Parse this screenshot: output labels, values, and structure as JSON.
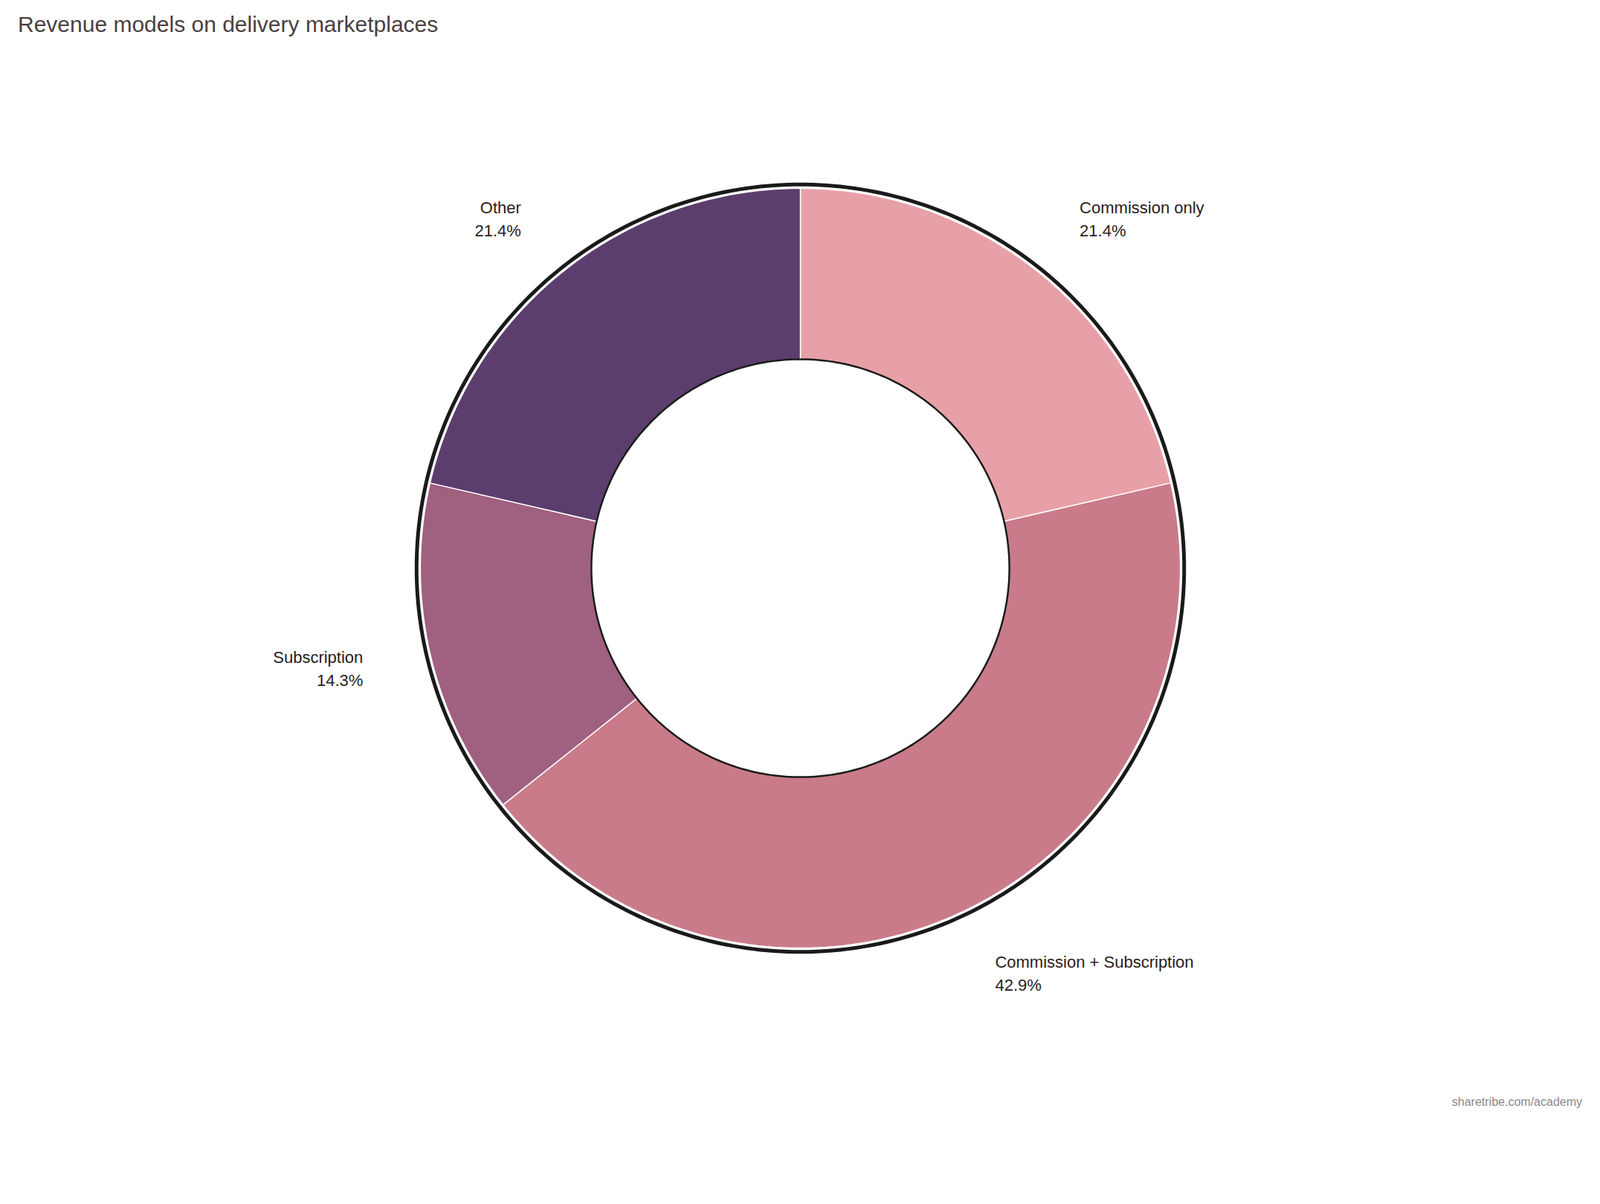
{
  "chart_data": {
    "type": "donut",
    "title": "Revenue models on delivery marketplaces",
    "caption": "sharetribe.com/academy",
    "categories": [
      "Commission only",
      "Commission + Subscription",
      "Subscription",
      "Other"
    ],
    "values": [
      21.4,
      42.9,
      14.3,
      21.4
    ],
    "value_labels": [
      "21.4%",
      "42.9%",
      "14.3%",
      "21.4%"
    ],
    "colors": [
      "#e8a0a8",
      "#c97b8a",
      "#a06080",
      "#5b3e6e"
    ],
    "data_labels": true,
    "tick_labels": false
  }
}
